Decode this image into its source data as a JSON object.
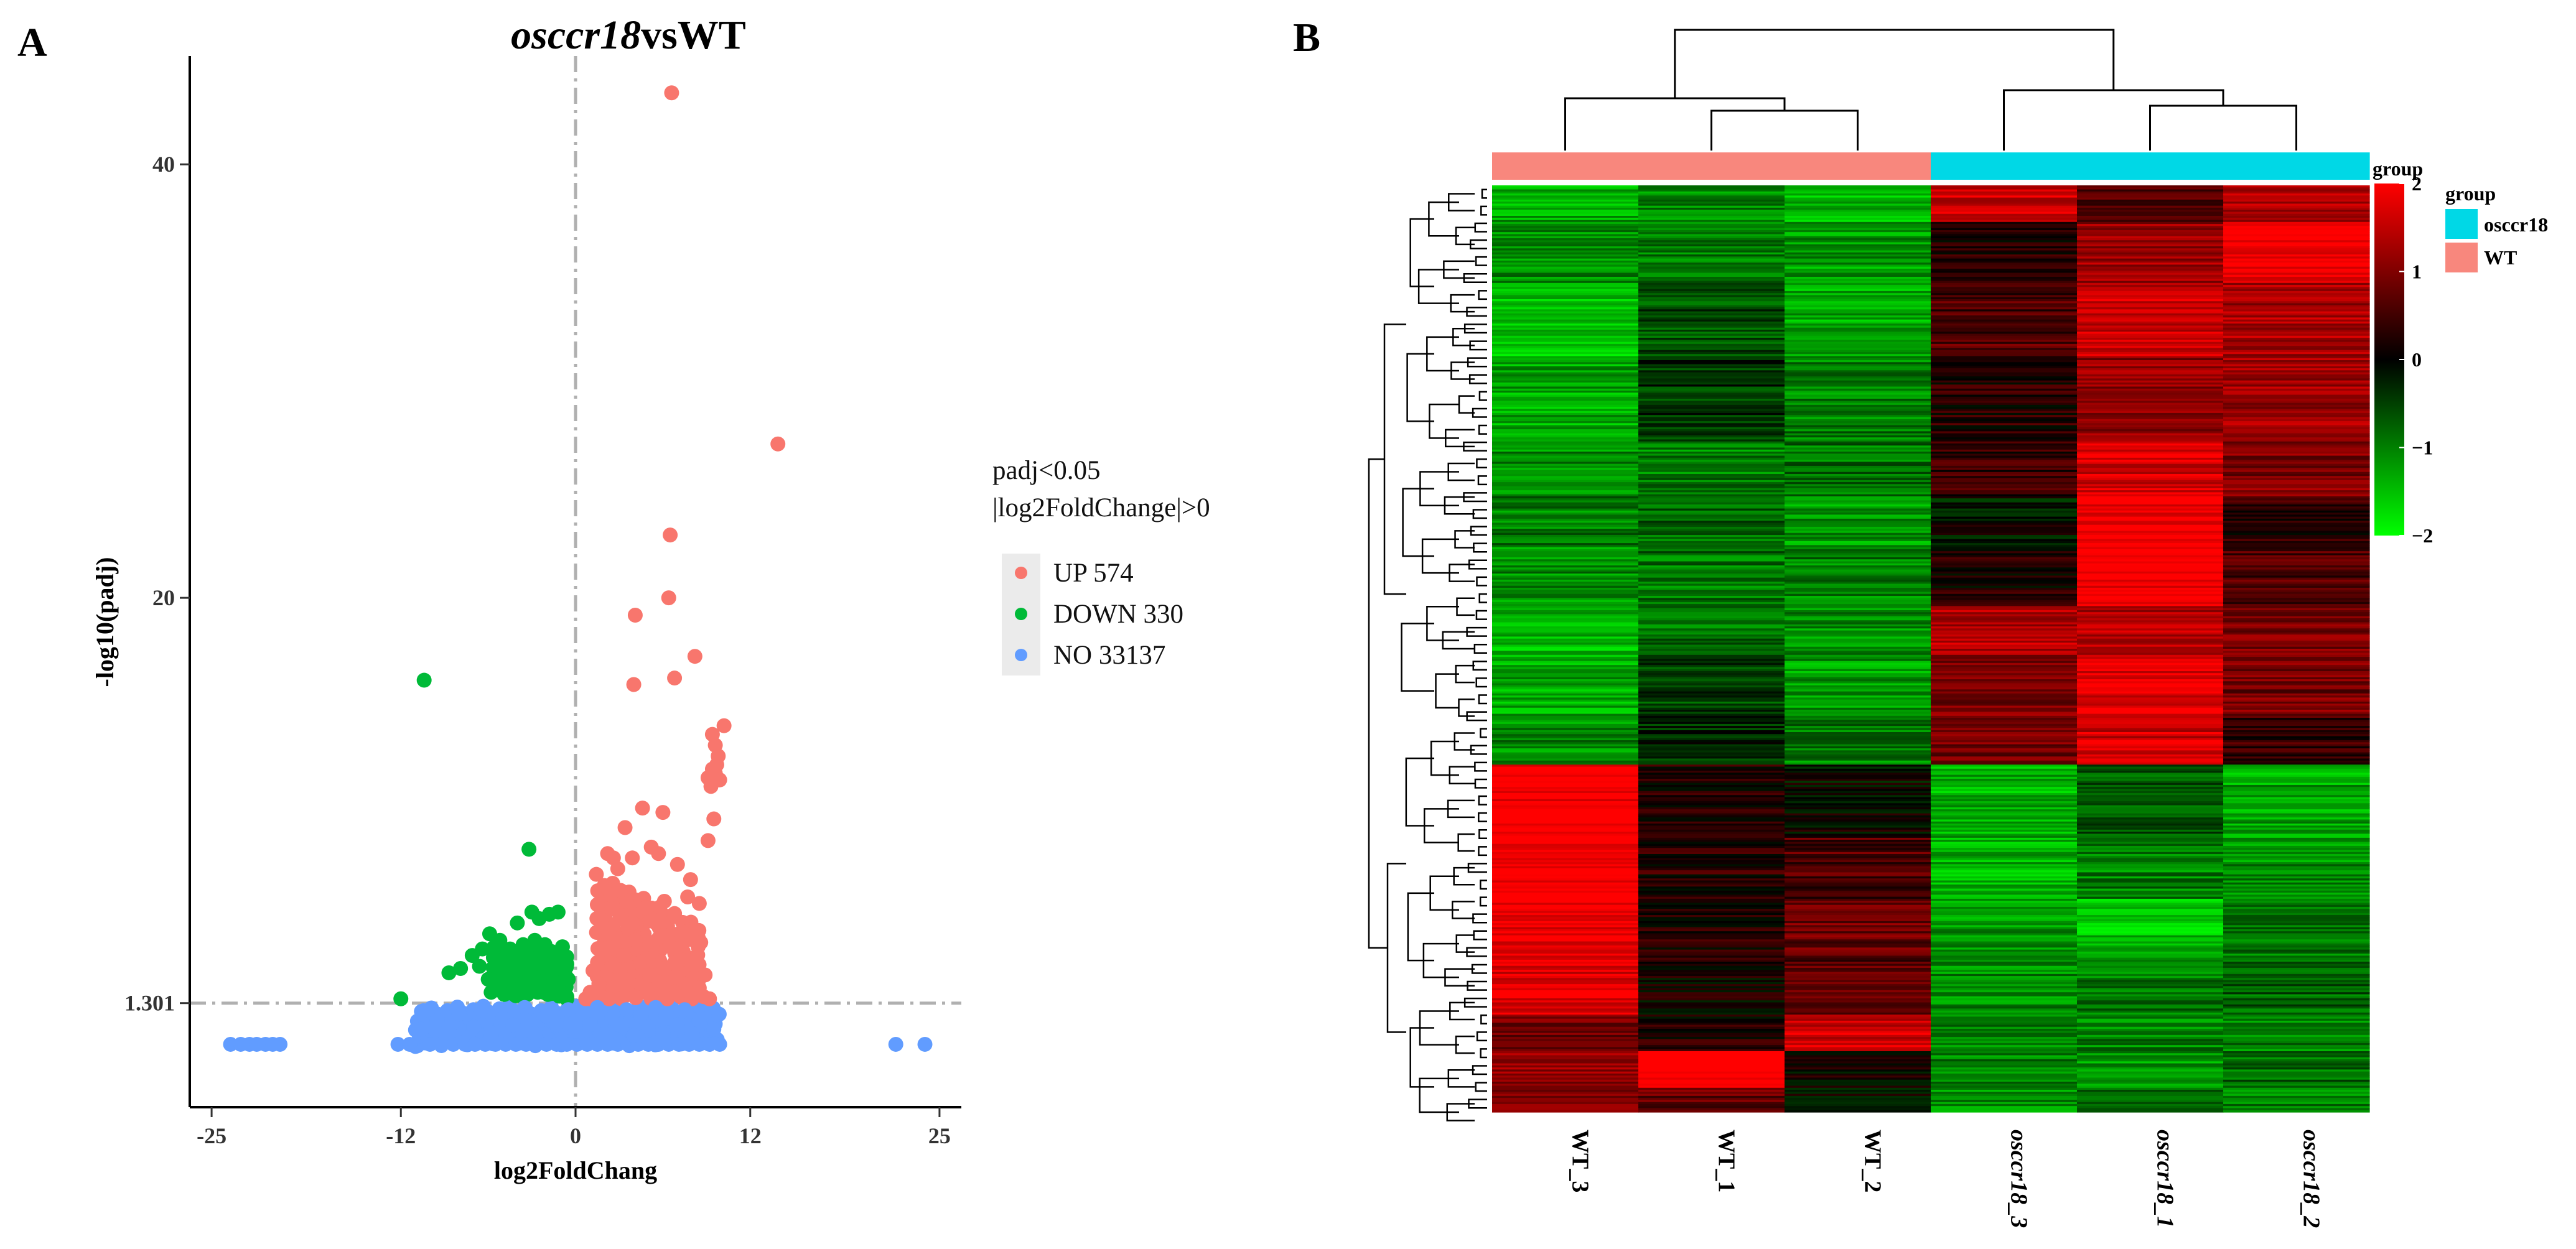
{
  "panels": {
    "a": "A",
    "b": "B"
  },
  "chart_data": [
    {
      "type": "scatter",
      "title_italic": "osccr18",
      "title_rest": "vsWT",
      "xlabel": "log2FoldChang",
      "ylabel": "-log10(padj)",
      "xlim": [
        -26.5,
        26.5
      ],
      "ylim": [
        -3.5,
        45
      ],
      "xticks": [
        {
          "v": -25,
          "label": "-25"
        },
        {
          "v": -12,
          "label": "-12"
        },
        {
          "v": 0,
          "label": "0"
        },
        {
          "v": 12,
          "label": "12"
        },
        {
          "v": 25,
          "label": "25"
        }
      ],
      "yticks": [
        {
          "v": 40,
          "label": "40"
        },
        {
          "v": 20,
          "label": "20"
        },
        {
          "v": 1.301,
          "label": "1.301"
        }
      ],
      "threshold_y": 1.301,
      "threshold_x": 0,
      "legend_title_1": "padj<0.05",
      "legend_title_2": "|log2FoldChange|>0",
      "series": [
        {
          "name": "UP 574",
          "color": "#f8766d",
          "points": [
            [
              6.6,
              43.3
            ],
            [
              13.9,
              27.1
            ],
            [
              6.5,
              22.9
            ],
            [
              4.1,
              19.2
            ],
            [
              6.4,
              20.0
            ],
            [
              8.2,
              17.3
            ],
            [
              4.0,
              16.0
            ],
            [
              6.8,
              16.3
            ],
            [
              10.2,
              14.1
            ],
            [
              9.6,
              13.2
            ],
            [
              9.4,
              12.1
            ],
            [
              9.3,
              11.3
            ],
            [
              9.1,
              11.7
            ],
            [
              9.6,
              11.9
            ],
            [
              9.9,
              11.6
            ],
            [
              9.8,
              12.7
            ],
            [
              9.4,
              13.7
            ],
            [
              9.7,
              12.3
            ],
            [
              4.6,
              10.3
            ],
            [
              6.0,
              10.1
            ],
            [
              3.4,
              9.4
            ],
            [
              2.2,
              8.2
            ],
            [
              9.5,
              9.8
            ],
            [
              9.1,
              8.8
            ],
            [
              2.6,
              8.0
            ],
            [
              5.2,
              8.5
            ],
            [
              2.9,
              7.5
            ],
            [
              3.9,
              8.0
            ],
            [
              5.7,
              8.2
            ],
            [
              7.0,
              7.7
            ],
            [
              7.9,
              7.0
            ],
            [
              7.7,
              6.2
            ],
            [
              8.5,
              5.9
            ],
            [
              6.1,
              6.0
            ],
            [
              3.5,
              6.0
            ],
            [
              2.4,
              6.3
            ],
            [
              3.1,
              6.5
            ],
            [
              4.8,
              5.7
            ],
            [
              5.5,
              5.0
            ],
            [
              6.8,
              5.3
            ],
            [
              7.3,
              4.6
            ],
            [
              8.2,
              4.4
            ],
            [
              8.6,
              4.1
            ],
            [
              3.9,
              5.0
            ],
            [
              2.3,
              4.5
            ],
            [
              4.1,
              4.2
            ],
            [
              5.9,
              4.4
            ],
            [
              6.5,
              3.9
            ],
            [
              7.2,
              3.3
            ],
            [
              1.9,
              3.8
            ],
            [
              3.3,
              3.5
            ],
            [
              4.5,
              3.2
            ],
            [
              5.4,
              3.0
            ],
            [
              8.0,
              3.1
            ],
            [
              8.9,
              2.6
            ],
            [
              7.4,
              2.2
            ],
            [
              1.2,
              2.8
            ],
            [
              2.0,
              2.5
            ],
            [
              3.0,
              2.3
            ],
            [
              4.3,
              2.1
            ],
            [
              5.1,
              2.6
            ],
            [
              6.1,
              2.9
            ],
            [
              6.9,
              2.5
            ],
            [
              1.0,
              1.8
            ],
            [
              1.6,
              2.2
            ],
            [
              2.6,
              1.9
            ],
            [
              3.7,
              1.7
            ],
            [
              4.8,
              1.9
            ],
            [
              5.8,
              1.7
            ],
            [
              6.8,
              1.8
            ],
            [
              7.8,
              1.9
            ],
            [
              8.5,
              2.0
            ],
            [
              0.7,
              1.5
            ],
            [
              1.4,
              1.6
            ],
            [
              2.3,
              1.5
            ],
            [
              3.2,
              1.5
            ],
            [
              4.1,
              1.6
            ],
            [
              5.2,
              1.5
            ],
            [
              6.3,
              1.5
            ],
            [
              7.2,
              1.6
            ],
            [
              8.0,
              1.5
            ],
            [
              8.8,
              1.6
            ],
            [
              9.2,
              1.5
            ]
          ]
        },
        {
          "name": "DOWN 330",
          "color": "#00ba38",
          "points": [
            [
              -10.4,
              16.2
            ],
            [
              -3.2,
              8.4
            ],
            [
              -3.0,
              5.5
            ],
            [
              -2.5,
              5.2
            ],
            [
              -1.8,
              5.4
            ],
            [
              -1.2,
              5.5
            ],
            [
              -4.0,
              5.0
            ],
            [
              -5.9,
              4.5
            ],
            [
              -6.4,
              3.8
            ],
            [
              -7.1,
              3.5
            ],
            [
              -6.6,
              3.0
            ],
            [
              -8.7,
              2.7
            ],
            [
              -7.9,
              2.9
            ],
            [
              -5.2,
              4.2
            ],
            [
              -4.5,
              3.8
            ],
            [
              -3.6,
              4.0
            ],
            [
              -2.8,
              4.2
            ],
            [
              -2.1,
              4.0
            ],
            [
              -1.4,
              3.6
            ],
            [
              -0.9,
              3.9
            ],
            [
              -5.5,
              3.2
            ],
            [
              -4.8,
              2.8
            ],
            [
              -3.9,
              3.0
            ],
            [
              -3.1,
              3.3
            ],
            [
              -2.4,
              3.1
            ],
            [
              -1.7,
              2.9
            ],
            [
              -1.0,
              2.8
            ],
            [
              -0.6,
              3.1
            ],
            [
              -6.0,
              2.4
            ],
            [
              -5.3,
              2.2
            ],
            [
              -4.4,
              2.4
            ],
            [
              -3.6,
              2.2
            ],
            [
              -2.9,
              2.5
            ],
            [
              -2.2,
              2.2
            ],
            [
              -1.5,
              2.3
            ],
            [
              -0.8,
              2.1
            ],
            [
              -0.5,
              2.4
            ],
            [
              -5.8,
              1.8
            ],
            [
              -4.9,
              1.7
            ],
            [
              -4.1,
              1.9
            ],
            [
              -3.3,
              1.7
            ],
            [
              -2.6,
              1.8
            ],
            [
              -1.9,
              1.7
            ],
            [
              -1.2,
              1.8
            ],
            [
              -0.6,
              1.6
            ],
            [
              -12.0,
              1.5
            ]
          ]
        },
        {
          "name": "NO 33137",
          "color": "#619cff",
          "points": [
            [
              -23.7,
              -0.6
            ],
            [
              -23.0,
              -0.6
            ],
            [
              -22.4,
              -0.6
            ],
            [
              -21.9,
              -0.6
            ],
            [
              -21.3,
              -0.6
            ],
            [
              -20.8,
              -0.6
            ],
            [
              -20.3,
              -0.6
            ],
            [
              -12.2,
              -0.6
            ],
            [
              -11.4,
              -0.6
            ],
            [
              -10.0,
              -0.6
            ],
            [
              -9.2,
              -0.6
            ],
            [
              -8.4,
              -0.6
            ],
            [
              -7.6,
              -0.6
            ],
            [
              -6.9,
              -0.6
            ],
            [
              -6.2,
              -0.6
            ],
            [
              -5.5,
              -0.6
            ],
            [
              -4.8,
              -0.6
            ],
            [
              -4.1,
              -0.6
            ],
            [
              -3.4,
              -0.6
            ],
            [
              -2.7,
              -0.6
            ],
            [
              -2.0,
              -0.6
            ],
            [
              -1.3,
              -0.6
            ],
            [
              -0.6,
              -0.6
            ],
            [
              0.1,
              -0.6
            ],
            [
              0.8,
              -0.6
            ],
            [
              1.5,
              -0.6
            ],
            [
              2.2,
              -0.6
            ],
            [
              2.9,
              -0.6
            ],
            [
              3.6,
              -0.6
            ],
            [
              4.3,
              -0.6
            ],
            [
              5.0,
              -0.6
            ],
            [
              5.7,
              -0.6
            ],
            [
              6.4,
              -0.6
            ],
            [
              7.1,
              -0.6
            ],
            [
              7.8,
              -0.6
            ],
            [
              8.5,
              -0.6
            ],
            [
              9.2,
              -0.6
            ],
            [
              9.9,
              -0.6
            ],
            [
              -10.6,
              0.1
            ],
            [
              -9.5,
              0.5
            ],
            [
              -8.0,
              0.8
            ],
            [
              -6.5,
              1.0
            ],
            [
              -5.0,
              0.6
            ],
            [
              -3.5,
              1.1
            ],
            [
              -2.0,
              0.7
            ],
            [
              -0.5,
              1.0
            ],
            [
              0.5,
              0.8
            ],
            [
              1.5,
              1.1
            ],
            [
              2.5,
              0.6
            ],
            [
              3.5,
              1.0
            ],
            [
              4.5,
              0.7
            ],
            [
              5.5,
              1.1
            ],
            [
              6.5,
              0.6
            ],
            [
              7.5,
              1.0
            ],
            [
              8.5,
              0.5
            ],
            [
              9.5,
              0.1
            ],
            [
              -9.0,
              -0.1
            ],
            [
              -7.0,
              0.2
            ],
            [
              -5.8,
              -0.2
            ],
            [
              -4.3,
              0.3
            ],
            [
              -2.8,
              -0.1
            ],
            [
              -1.3,
              0.3
            ],
            [
              0.0,
              0.0
            ],
            [
              1.0,
              0.3
            ],
            [
              2.0,
              -0.1
            ],
            [
              3.0,
              0.3
            ],
            [
              4.0,
              -0.2
            ],
            [
              5.0,
              0.2
            ],
            [
              6.0,
              -0.1
            ],
            [
              7.0,
              0.3
            ],
            [
              8.0,
              -0.1
            ],
            [
              22.0,
              -0.6
            ],
            [
              24.0,
              -0.6
            ]
          ]
        }
      ]
    },
    {
      "type": "heatmap",
      "columns": [
        {
          "name": "WT_3",
          "italic": false,
          "group": "WT"
        },
        {
          "name": "WT_1",
          "italic": false,
          "group": "WT"
        },
        {
          "name": "WT_2",
          "italic": false,
          "group": "WT"
        },
        {
          "name": "osccr18_3",
          "italic": true,
          "group": "osccr18"
        },
        {
          "name": "osccr18_1",
          "italic": true,
          "group": "osccr18"
        },
        {
          "name": "osccr18_2",
          "italic": true,
          "group": "osccr18"
        }
      ],
      "row_blocks": [
        {
          "weight": 6,
          "values": [
            -1.3,
            -1.1,
            -1.4,
            1.6,
            0.5,
            1.4
          ]
        },
        {
          "weight": 10,
          "values": [
            -1.1,
            -1.0,
            -1.2,
            0.2,
            1.2,
            1.9
          ]
        },
        {
          "weight": 12,
          "values": [
            -1.6,
            -0.6,
            -1.3,
            0.6,
            1.6,
            1.3
          ]
        },
        {
          "weight": 14,
          "values": [
            -1.3,
            -0.4,
            -1.0,
            0.3,
            1.1,
            1.2
          ]
        },
        {
          "weight": 9,
          "values": [
            -1.1,
            -1.0,
            -0.9,
            0.4,
            1.7,
            1.0
          ]
        },
        {
          "weight": 8,
          "values": [
            -1.0,
            -0.8,
            -1.2,
            -0.1,
            2.0,
            0.3
          ]
        },
        {
          "weight": 10,
          "values": [
            -1.1,
            -0.9,
            -1.0,
            0.2,
            2.0,
            0.6
          ]
        },
        {
          "weight": 8,
          "values": [
            -1.5,
            -0.9,
            -1.1,
            1.4,
            1.4,
            1.0
          ]
        },
        {
          "weight": 10,
          "values": [
            -1.3,
            -0.5,
            -1.2,
            1.0,
            1.8,
            0.9
          ]
        },
        {
          "weight": 8,
          "values": [
            -1.1,
            -0.3,
            -1.0,
            0.9,
            1.6,
            0.4
          ]
        },
        {
          "weight": 12,
          "values": [
            2.0,
            0.3,
            0.0,
            -1.4,
            -0.6,
            -1.3
          ]
        },
        {
          "weight": 10,
          "values": [
            2.0,
            0.3,
            0.6,
            -1.4,
            -1.0,
            -1.1
          ]
        },
        {
          "weight": 10,
          "values": [
            1.9,
            0.2,
            0.8,
            -1.2,
            -1.5,
            -0.9
          ]
        },
        {
          "weight": 9,
          "values": [
            1.8,
            0.1,
            0.6,
            -1.1,
            -0.9,
            -0.8
          ]
        },
        {
          "weight": 6,
          "values": [
            0.9,
            0.2,
            1.6,
            -1.0,
            -1.0,
            -1.0
          ]
        },
        {
          "weight": 6,
          "values": [
            1.1,
            2.2,
            0.1,
            -1.0,
            -1.2,
            -0.8
          ]
        },
        {
          "weight": 4,
          "values": [
            1.0,
            0.8,
            0.0,
            -1.1,
            -0.9,
            -1.0
          ]
        }
      ],
      "annotation_title": "group",
      "annotation_legend": [
        {
          "label": "osccr18",
          "color": "#00d8e6"
        },
        {
          "label": "WT",
          "color": "#f8877d"
        }
      ],
      "colorbar": {
        "title": "group",
        "ticks": [
          {
            "v": 2,
            "label": "2"
          },
          {
            "v": 1,
            "label": "1"
          },
          {
            "v": 0,
            "label": "0"
          },
          {
            "v": -1,
            "label": "−1"
          },
          {
            "v": -2,
            "label": "−2"
          }
        ],
        "range": [
          -2,
          2
        ]
      }
    }
  ]
}
